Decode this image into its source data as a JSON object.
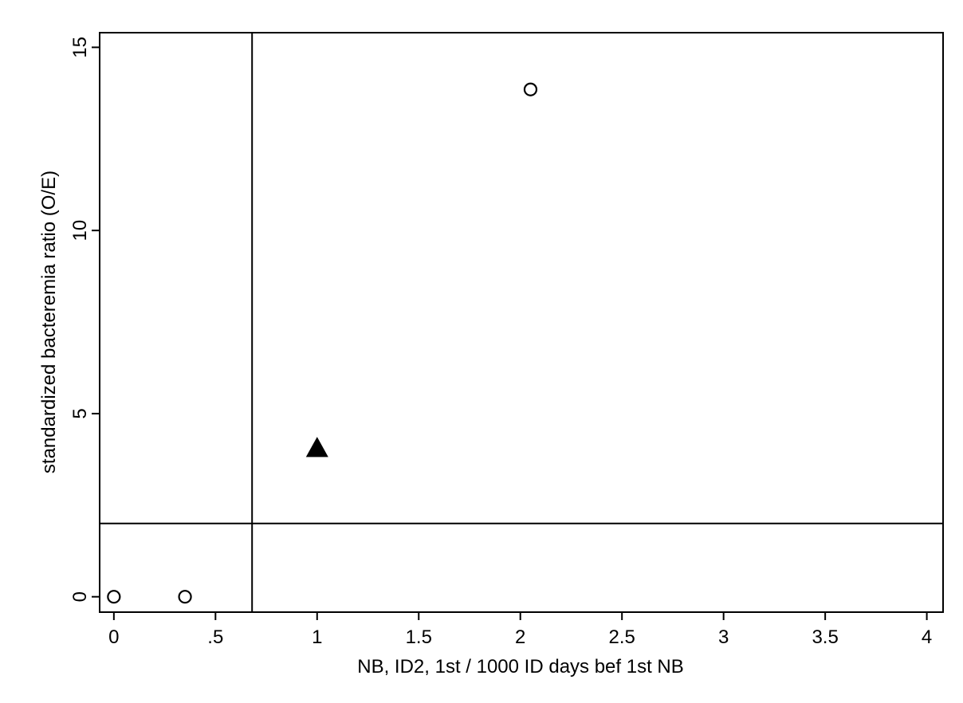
{
  "chart_data": {
    "type": "scatter",
    "title": "",
    "xlabel": "NB, ID2, 1st / 1000 ID days bef 1st NB",
    "ylabel": "standardized bacteremia ratio (O/E)",
    "xlim": [
      -0.07,
      4.08
    ],
    "ylim": [
      -0.42,
      15.4
    ],
    "xticks": [
      {
        "value": 0,
        "label": "0"
      },
      {
        "value": 0.5,
        "label": ".5"
      },
      {
        "value": 1,
        "label": "1"
      },
      {
        "value": 1.5,
        "label": "1.5"
      },
      {
        "value": 2,
        "label": "2"
      },
      {
        "value": 2.5,
        "label": "2.5"
      },
      {
        "value": 3,
        "label": "3"
      },
      {
        "value": 3.5,
        "label": "3.5"
      },
      {
        "value": 4,
        "label": "4"
      }
    ],
    "yticks": [
      {
        "value": 0,
        "label": "0"
      },
      {
        "value": 5,
        "label": "5"
      },
      {
        "value": 10,
        "label": "10"
      },
      {
        "value": 15,
        "label": "15"
      }
    ],
    "reference_lines": {
      "vertical_x": 0.68,
      "horizontal_y": 2.0
    },
    "series": [
      {
        "marker": "hollow-circle",
        "points": [
          {
            "x": 0.0,
            "y": 0.0
          },
          {
            "x": 0.35,
            "y": 0.0
          },
          {
            "x": 2.05,
            "y": 13.85
          }
        ]
      },
      {
        "marker": "filled-triangle",
        "points": [
          {
            "x": 1.0,
            "y": 4.05
          }
        ]
      }
    ],
    "grid": false,
    "legend": "none",
    "colors": {
      "marker": "#000000",
      "axis": "#000000",
      "background": "#ffffff"
    }
  }
}
